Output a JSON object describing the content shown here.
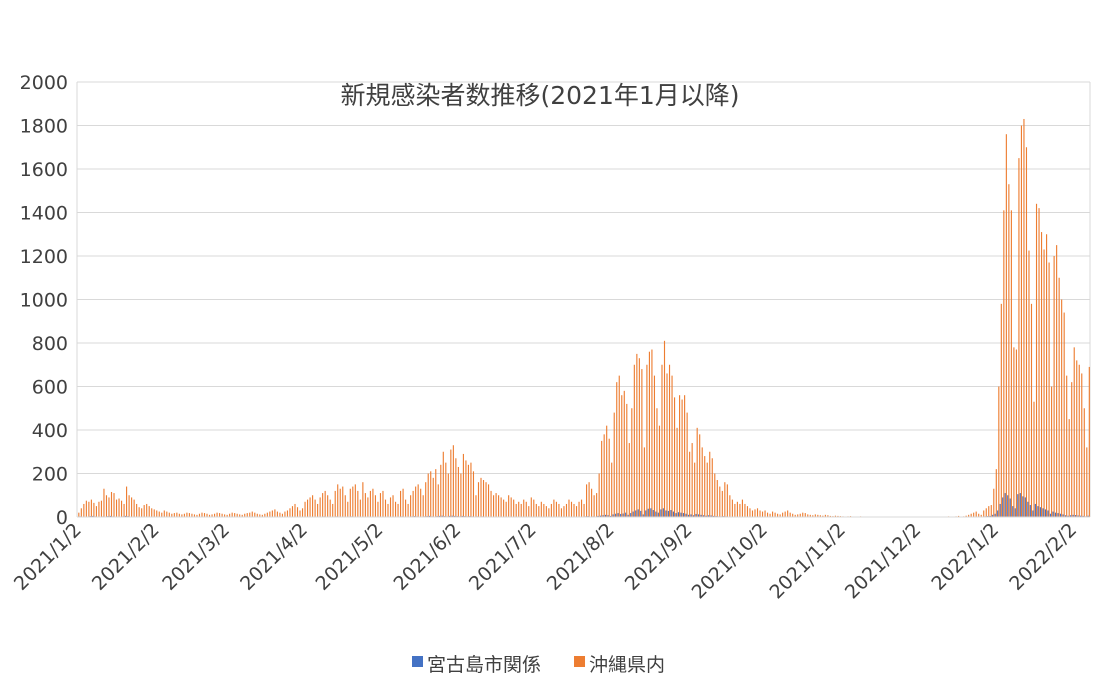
{
  "chart_data": {
    "type": "bar",
    "title": "新規感染者数推移(2021年1月以降)",
    "ylim": [
      0,
      2000
    ],
    "yticks": [
      0,
      200,
      400,
      600,
      800,
      1000,
      1200,
      1400,
      1600,
      1800,
      2000
    ],
    "grid": true,
    "legend": "bottom",
    "categories": [
      "2021/1/2",
      null,
      null,
      null,
      null,
      null,
      null,
      null,
      null,
      null,
      null,
      null,
      null,
      null,
      null,
      null,
      null,
      null,
      null,
      null,
      null,
      null,
      null,
      null,
      null,
      null,
      null,
      null,
      null,
      null,
      null,
      "2021/2/2",
      null,
      null,
      null,
      null,
      null,
      null,
      null,
      null,
      null,
      null,
      null,
      null,
      null,
      null,
      null,
      null,
      null,
      null,
      null,
      null,
      null,
      null,
      null,
      null,
      null,
      null,
      null,
      "2021/3/2",
      null,
      null,
      null,
      null,
      null,
      null,
      null,
      null,
      null,
      null,
      null,
      null,
      null,
      null,
      null,
      null,
      null,
      null,
      null,
      null,
      null,
      null,
      null,
      null,
      null,
      null,
      null,
      null,
      null,
      null,
      "2021/4/2",
      null,
      null,
      null,
      null,
      null,
      null,
      null,
      null,
      null,
      null,
      null,
      null,
      null,
      null,
      null,
      null,
      null,
      null,
      null,
      null,
      null,
      null,
      null,
      null,
      null,
      null,
      null,
      null,
      null,
      "2021/5/2",
      null,
      null,
      null,
      null,
      null,
      null,
      null,
      null,
      null,
      null,
      null,
      null,
      null,
      null,
      null,
      null,
      null,
      null,
      null,
      null,
      null,
      null,
      null,
      null,
      null,
      null,
      null,
      null,
      null,
      null,
      "2021/6/2",
      null,
      null,
      null,
      null,
      null,
      null,
      null,
      null,
      null,
      null,
      null,
      null,
      null,
      null,
      null,
      null,
      null,
      null,
      null,
      null,
      null,
      null,
      null,
      null,
      null,
      null,
      null,
      null,
      null,
      "2021/7/2",
      null,
      null,
      null,
      null,
      null,
      null,
      null,
      null,
      null,
      null,
      null,
      null,
      null,
      null,
      null,
      null,
      null,
      null,
      null,
      null,
      null,
      null,
      null,
      null,
      null,
      null,
      null,
      null,
      null,
      null,
      "2021/8/2",
      null,
      null,
      null,
      null,
      null,
      null,
      null,
      null,
      null,
      null,
      null,
      null,
      null,
      null,
      null,
      null,
      null,
      null,
      null,
      null,
      null,
      null,
      null,
      null,
      null,
      null,
      null,
      null,
      null,
      null,
      "2021/9/2",
      null,
      null,
      null,
      null,
      null,
      null,
      null,
      null,
      null,
      null,
      null,
      null,
      null,
      null,
      null,
      null,
      null,
      null,
      null,
      null,
      null,
      null,
      null,
      null,
      null,
      null,
      null,
      null,
      null,
      "2021/10/2",
      null,
      null,
      null,
      null,
      null,
      null,
      null,
      null,
      null,
      null,
      null,
      null,
      null,
      null,
      null,
      null,
      null,
      null,
      null,
      null,
      null,
      null,
      null,
      null,
      null,
      null,
      null,
      null,
      null,
      null,
      "2021/11/2",
      null,
      null,
      null,
      null,
      null,
      null,
      null,
      null,
      null,
      null,
      null,
      null,
      null,
      null,
      null,
      null,
      null,
      null,
      null,
      null,
      null,
      null,
      null,
      null,
      null,
      null,
      null,
      null,
      null,
      "2021/12/2",
      null,
      null,
      null,
      null,
      null,
      null,
      null,
      null,
      null,
      null,
      null,
      null,
      null,
      null,
      null,
      null,
      null,
      null,
      null,
      null,
      null,
      null,
      null,
      null,
      null,
      null,
      null,
      null,
      null,
      null,
      "2022/1/2",
      null,
      null,
      null,
      null,
      null,
      null,
      null,
      null,
      null,
      null,
      null,
      null,
      null,
      null,
      null,
      null,
      null,
      null,
      null,
      null,
      null,
      null,
      null,
      null,
      null,
      null,
      null,
      null,
      null,
      null,
      "2022/2/2",
      null,
      null,
      null,
      null,
      null,
      null
    ],
    "series": [
      {
        "name": "宮古島市関係",
        "color": "#4472c4",
        "values": [
          2,
          3,
          1,
          0,
          2,
          4,
          5,
          3,
          2,
          1,
          3,
          2,
          4,
          5,
          3,
          2,
          1,
          2,
          3,
          5,
          4,
          2,
          1,
          0,
          1,
          2,
          1,
          0,
          1,
          0,
          0,
          1,
          0,
          0,
          1,
          0,
          0,
          0,
          1,
          0,
          0,
          0,
          1,
          0,
          0,
          0,
          0,
          1,
          0,
          0,
          0,
          0,
          0,
          1,
          0,
          0,
          0,
          0,
          0,
          0,
          1,
          0,
          0,
          0,
          0,
          1,
          0,
          0,
          0,
          0,
          0,
          1,
          0,
          0,
          0,
          0,
          0,
          1,
          0,
          0,
          1,
          0,
          0,
          0,
          1,
          0,
          2,
          1,
          0,
          1,
          2,
          1,
          0,
          2,
          1,
          0,
          1,
          2,
          3,
          2,
          1,
          0,
          2,
          3,
          2,
          1,
          0,
          1,
          2,
          3,
          2,
          1,
          0,
          2,
          1,
          0,
          1,
          2,
          1,
          1,
          2,
          1,
          0,
          1,
          2,
          1,
          0,
          1,
          2,
          3,
          2,
          1,
          2,
          3,
          4,
          3,
          2,
          1,
          3,
          4,
          5,
          3,
          2,
          4,
          5,
          6,
          4,
          3,
          5,
          6,
          5,
          4,
          3,
          5,
          4,
          3,
          4,
          3,
          2,
          3,
          2,
          3,
          2,
          1,
          2,
          1,
          2,
          1,
          1,
          0,
          1,
          2,
          1,
          0,
          1,
          1,
          0,
          1,
          0,
          0,
          1,
          0,
          1,
          0,
          1,
          0,
          0,
          1,
          0,
          1,
          0,
          1,
          0,
          0,
          1,
          1,
          0,
          1,
          0,
          1,
          2,
          1,
          3,
          4,
          2,
          3,
          2,
          5,
          6,
          8,
          10,
          8,
          5,
          12,
          15,
          18,
          14,
          16,
          20,
          10,
          18,
          25,
          30,
          35,
          28,
          12,
          30,
          38,
          40,
          32,
          25,
          20,
          35,
          40,
          30,
          28,
          32,
          25,
          18,
          22,
          20,
          18,
          15,
          10,
          12,
          8,
          14,
          12,
          10,
          8,
          6,
          8,
          7,
          5,
          4,
          3,
          3,
          4,
          3,
          2,
          2,
          1,
          2,
          1,
          2,
          1,
          1,
          0,
          1,
          1,
          0,
          0,
          1,
          0,
          0,
          1,
          0,
          0,
          1,
          0,
          0,
          0,
          1,
          0,
          0,
          0,
          0,
          1,
          0,
          0,
          0,
          0,
          0,
          0,
          1,
          0,
          0,
          0,
          0,
          0,
          0,
          0,
          0,
          0,
          0,
          0,
          0,
          0,
          0,
          0,
          0,
          0,
          0,
          0,
          0,
          0,
          0,
          0,
          0,
          0,
          0,
          0,
          0,
          0,
          0,
          0,
          0,
          0,
          0,
          0,
          0,
          0,
          0,
          0,
          0,
          0,
          0,
          0,
          0,
          0,
          0,
          0,
          0,
          0,
          0,
          0,
          0,
          0,
          0,
          0,
          0,
          0,
          0,
          0,
          0,
          1,
          0,
          1,
          0,
          0,
          2,
          3,
          4,
          5,
          10,
          15,
          30,
          60,
          90,
          110,
          100,
          85,
          50,
          40,
          105,
          110,
          95,
          90,
          70,
          55,
          30,
          60,
          50,
          45,
          40,
          35,
          30,
          15,
          25,
          20,
          18,
          15,
          12,
          8,
          6,
          8,
          10,
          9,
          7,
          6,
          5,
          3,
          6
        ]
      },
      {
        "name": "沖縄県内",
        "color": "#ed7d31",
        "values": [
          20,
          40,
          60,
          75,
          70,
          80,
          65,
          50,
          70,
          75,
          130,
          100,
          90,
          115,
          110,
          80,
          85,
          75,
          60,
          140,
          100,
          90,
          80,
          60,
          45,
          40,
          55,
          60,
          50,
          40,
          35,
          30,
          25,
          20,
          30,
          25,
          20,
          15,
          18,
          20,
          15,
          12,
          15,
          20,
          18,
          15,
          12,
          10,
          15,
          20,
          18,
          15,
          10,
          12,
          15,
          20,
          18,
          15,
          12,
          10,
          15,
          20,
          18,
          15,
          12,
          10,
          15,
          18,
          20,
          25,
          20,
          15,
          12,
          10,
          15,
          20,
          25,
          30,
          35,
          25,
          20,
          15,
          25,
          30,
          40,
          50,
          60,
          45,
          30,
          40,
          70,
          80,
          90,
          100,
          80,
          60,
          90,
          110,
          120,
          100,
          80,
          60,
          120,
          150,
          130,
          140,
          100,
          70,
          130,
          140,
          150,
          120,
          80,
          160,
          110,
          90,
          120,
          130,
          100,
          70,
          110,
          120,
          80,
          60,
          90,
          100,
          70,
          60,
          120,
          130,
          80,
          60,
          100,
          120,
          140,
          150,
          130,
          100,
          160,
          200,
          210,
          180,
          220,
          150,
          240,
          300,
          250,
          200,
          310,
          330,
          270,
          230,
          200,
          290,
          260,
          240,
          250,
          210,
          100,
          160,
          180,
          170,
          160,
          150,
          120,
          100,
          110,
          100,
          90,
          80,
          70,
          100,
          90,
          80,
          60,
          70,
          60,
          80,
          70,
          50,
          90,
          80,
          60,
          50,
          70,
          60,
          50,
          40,
          60,
          80,
          70,
          60,
          40,
          50,
          60,
          80,
          70,
          60,
          50,
          70,
          80,
          60,
          150,
          160,
          130,
          100,
          110,
          200,
          350,
          380,
          420,
          360,
          250,
          480,
          620,
          650,
          560,
          580,
          520,
          340,
          500,
          700,
          750,
          730,
          680,
          320,
          700,
          760,
          770,
          650,
          500,
          420,
          700,
          810,
          660,
          700,
          650,
          550,
          410,
          560,
          540,
          560,
          480,
          300,
          340,
          250,
          410,
          380,
          320,
          280,
          250,
          300,
          270,
          200,
          170,
          140,
          120,
          160,
          150,
          100,
          80,
          60,
          70,
          60,
          80,
          60,
          50,
          40,
          30,
          35,
          40,
          30,
          25,
          30,
          20,
          15,
          25,
          20,
          15,
          12,
          20,
          25,
          30,
          20,
          15,
          10,
          12,
          15,
          20,
          18,
          12,
          10,
          8,
          12,
          10,
          8,
          6,
          10,
          8,
          5,
          4,
          6,
          5,
          4,
          3,
          2,
          3,
          4,
          2,
          1,
          2,
          3,
          2,
          1,
          1,
          2,
          1,
          0,
          1,
          2,
          1,
          0,
          1,
          1,
          0,
          1,
          2,
          1,
          0,
          1,
          1,
          0,
          1,
          1,
          0,
          1,
          2,
          0,
          1,
          1,
          2,
          1,
          0,
          1,
          2,
          1,
          3,
          2,
          1,
          3,
          5,
          2,
          3,
          6,
          10,
          15,
          20,
          25,
          15,
          10,
          30,
          40,
          50,
          55,
          130,
          220,
          600,
          980,
          1410,
          1760,
          1530,
          1410,
          780,
          770,
          1650,
          1800,
          1830,
          1700,
          1225,
          980,
          530,
          1440,
          1420,
          1310,
          1230,
          1300,
          1170,
          600,
          1200,
          1250,
          1100,
          1000,
          940,
          650,
          450,
          620,
          780,
          720,
          700,
          660,
          500,
          320,
          690
        ]
      }
    ]
  }
}
